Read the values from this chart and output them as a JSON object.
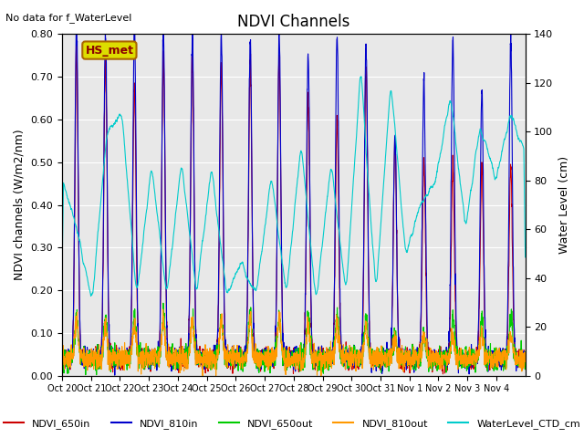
{
  "title": "NDVI Channels",
  "ylabel_left": "NDVI channels (W/m2/nm)",
  "ylabel_right": "Water Level (cm)",
  "no_data_text": "No data for f_WaterLevel",
  "station_label": "HS_met",
  "ylim_left": [
    0.0,
    0.8
  ],
  "ylim_right": [
    0,
    140
  ],
  "yticks_left": [
    0.0,
    0.1,
    0.2,
    0.3,
    0.4,
    0.5,
    0.6,
    0.7,
    0.8
  ],
  "yticks_right": [
    0,
    20,
    40,
    60,
    80,
    100,
    120,
    140
  ],
  "colors": {
    "NDVI_650in": "#cc0000",
    "NDVI_810in": "#0000cc",
    "NDVI_650out": "#00cc00",
    "NDVI_810out": "#ff9900",
    "WaterLevel_CTD_cm": "#00cccc"
  },
  "x_tick_labels": [
    "Oct 20",
    "Oct 21",
    "Oct 22",
    "Oct 23",
    "Oct 24",
    "Oct 25",
    "Oct 26",
    "Oct 27",
    "Oct 28",
    "Oct 29",
    "Oct 30",
    "Oct 31",
    "Nov 1",
    "Nov 2",
    "Nov 3",
    "Nov 4"
  ],
  "background_color": "#e8e8e8",
  "figure_bg": "#ffffff"
}
